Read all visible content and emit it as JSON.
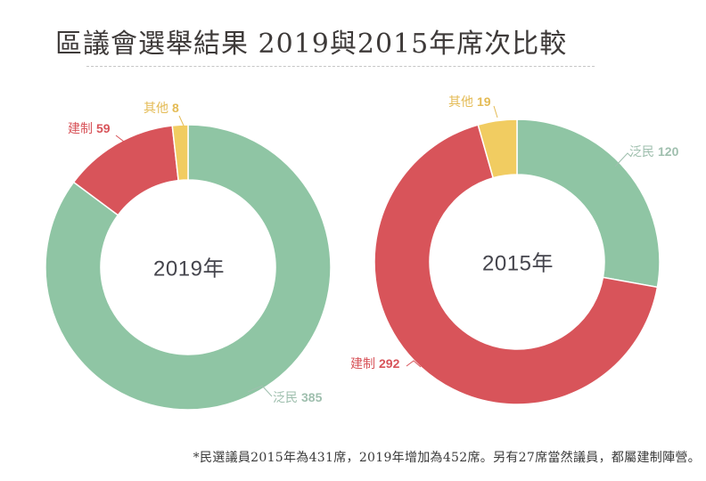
{
  "title": "區議會選舉結果 2019與2015年席次比較",
  "footnote": "*民選議員2015年為431席，2019年增加為452席。另有27席當然議員，都屬建制陣營。",
  "colors": {
    "pan_democrats": "#8FC5A4",
    "pro_establishment": "#D8545A",
    "others": "#F1CC61",
    "pan_democrats_label": "#9FBFAE",
    "pro_establishment_label": "#D8545A",
    "others_label": "#E4BB55",
    "title_text": "#3E3A39",
    "center_text": "#45454D"
  },
  "chart_data": [
    {
      "type": "pie",
      "variant": "donut",
      "center_label": "2019年",
      "total_seats": 452,
      "slices": [
        {
          "label": "泛民",
          "value": 385,
          "color": "#8FC5A4"
        },
        {
          "label": "建制",
          "value": 59,
          "color": "#D8545A"
        },
        {
          "label": "其他",
          "value": 8,
          "color": "#F1CC61"
        }
      ]
    },
    {
      "type": "pie",
      "variant": "donut",
      "center_label": "2015年",
      "total_seats": 431,
      "slices": [
        {
          "label": "泛民",
          "value": 120,
          "color": "#8FC5A4"
        },
        {
          "label": "建制",
          "value": 292,
          "color": "#D8545A"
        },
        {
          "label": "其他",
          "value": 19,
          "color": "#F1CC61"
        }
      ]
    }
  ]
}
